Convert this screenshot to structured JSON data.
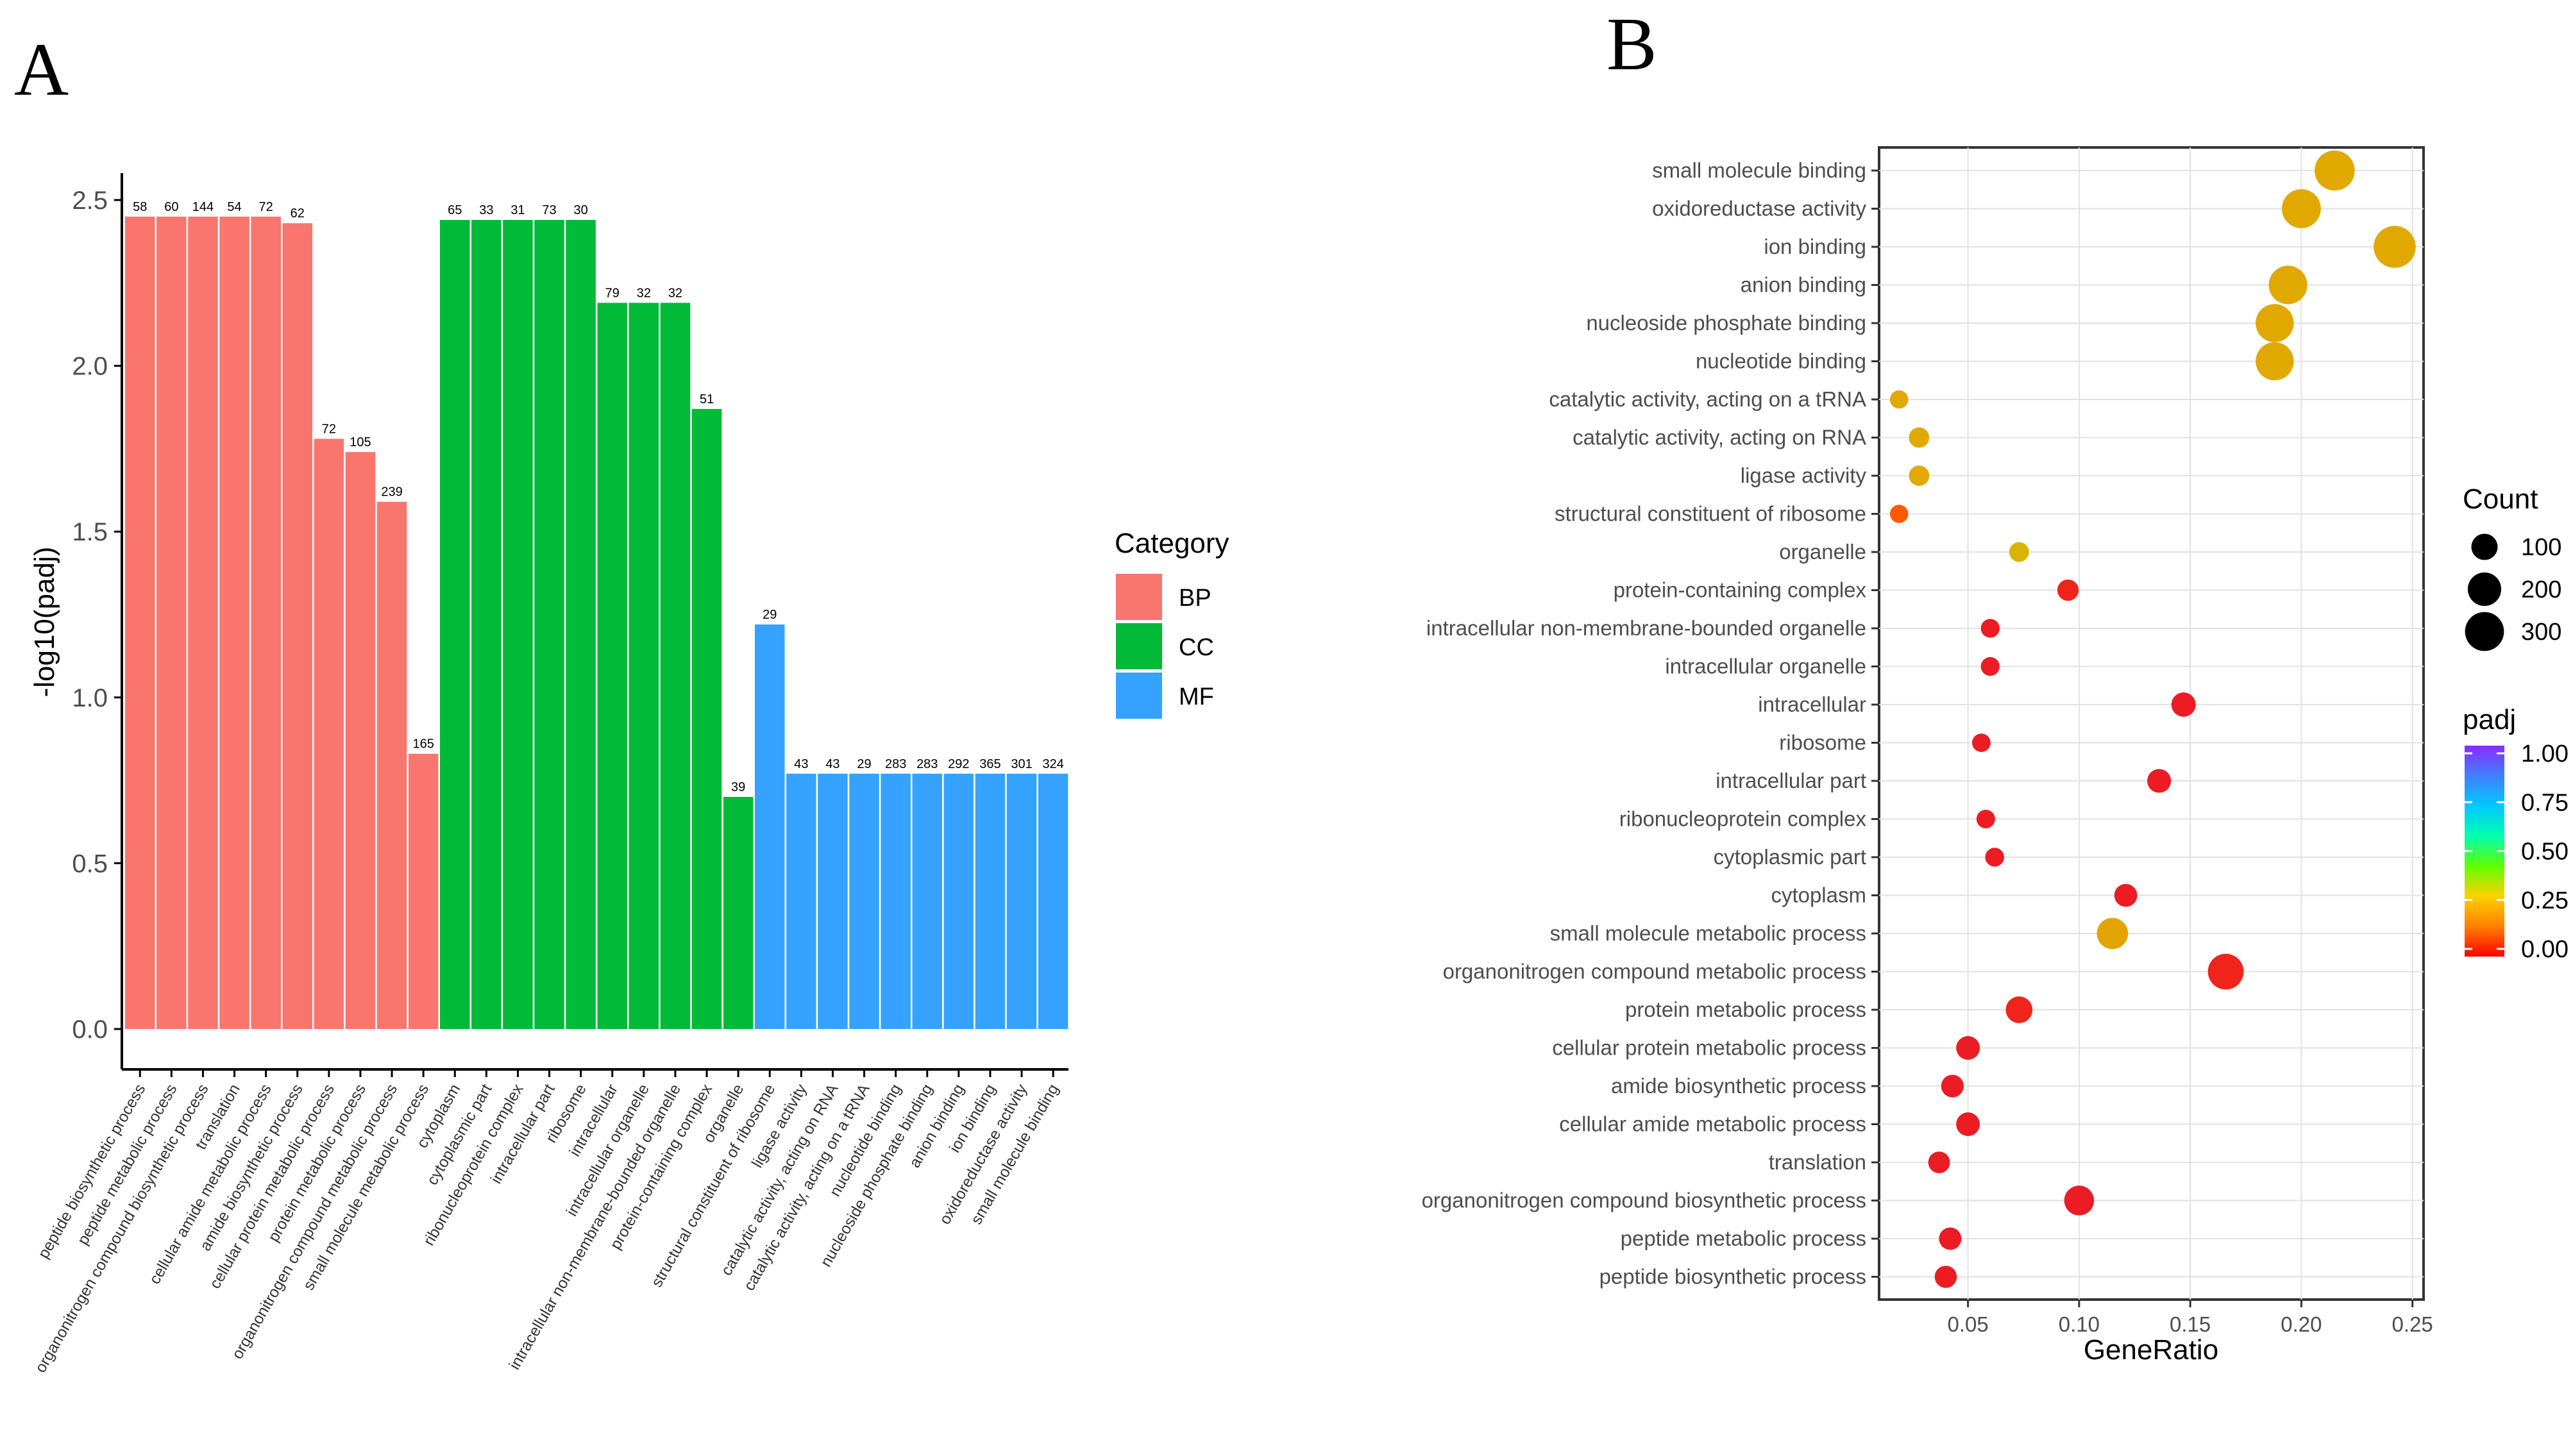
{
  "panels": {
    "left_letter": "A",
    "right_letter": "B"
  },
  "chart_data": [
    {
      "type": "bar",
      "panel": "A",
      "ylabel": "-log10(padj)",
      "ylim": [
        0,
        2.5
      ],
      "yticks": [
        "0.0",
        "0.5",
        "1.0",
        "1.5",
        "2.0",
        "2.5"
      ],
      "legend": {
        "title": "Category",
        "items": [
          {
            "label": "BP",
            "color": "#F8766D"
          },
          {
            "label": "CC",
            "color": "#00BA38"
          },
          {
            "label": "MF",
            "color": "#35A2FF"
          }
        ]
      },
      "bars": [
        {
          "category": "peptide biosynthetic process",
          "group": "BP",
          "value": 2.45,
          "label": "58"
        },
        {
          "category": "peptide metabolic process",
          "group": "BP",
          "value": 2.45,
          "label": "60"
        },
        {
          "category": "organonitrogen compound biosynthetic process",
          "group": "BP",
          "value": 2.45,
          "label": "144"
        },
        {
          "category": "translation",
          "group": "BP",
          "value": 2.45,
          "label": "54"
        },
        {
          "category": "cellular amide metabolic process",
          "group": "BP",
          "value": 2.45,
          "label": "72"
        },
        {
          "category": "amide biosynthetic process",
          "group": "BP",
          "value": 2.43,
          "label": "62"
        },
        {
          "category": "cellular protein metabolic process",
          "group": "BP",
          "value": 1.78,
          "label": "72"
        },
        {
          "category": "protein metabolic process",
          "group": "BP",
          "value": 1.74,
          "label": "105"
        },
        {
          "category": "organonitrogen compound metabolic process",
          "group": "BP",
          "value": 1.59,
          "label": "239"
        },
        {
          "category": "small molecule metabolic process",
          "group": "BP",
          "value": 0.83,
          "label": "165"
        },
        {
          "category": "cytoplasm",
          "group": "CC",
          "value": 2.44,
          "label": "65"
        },
        {
          "category": "cytoplasmic part",
          "group": "CC",
          "value": 2.44,
          "label": "33"
        },
        {
          "category": "ribonucleoprotein complex",
          "group": "CC",
          "value": 2.44,
          "label": "31"
        },
        {
          "category": "intracellular part",
          "group": "CC",
          "value": 2.44,
          "label": "73"
        },
        {
          "category": "ribosome",
          "group": "CC",
          "value": 2.44,
          "label": "30"
        },
        {
          "category": "intracellular",
          "group": "CC",
          "value": 2.19,
          "label": "79"
        },
        {
          "category": "intracellular organelle",
          "group": "CC",
          "value": 2.19,
          "label": "32"
        },
        {
          "category": "intracellular non-membrane-bounded organelle",
          "group": "CC",
          "value": 2.19,
          "label": "32"
        },
        {
          "category": "protein-containing complex",
          "group": "CC",
          "value": 1.87,
          "label": "51"
        },
        {
          "category": "organelle",
          "group": "CC",
          "value": 0.7,
          "label": "39"
        },
        {
          "category": "structural constituent of ribosome",
          "group": "MF",
          "value": 1.22,
          "label": "29"
        },
        {
          "category": "ligase activity",
          "group": "MF",
          "value": 0.77,
          "label": "43"
        },
        {
          "category": "catalytic activity, acting on RNA",
          "group": "MF",
          "value": 0.77,
          "label": "43"
        },
        {
          "category": "catalytic activity, acting on a tRNA",
          "group": "MF",
          "value": 0.77,
          "label": "29"
        },
        {
          "category": "nucleotide binding",
          "group": "MF",
          "value": 0.77,
          "label": "283"
        },
        {
          "category": "nucleoside phosphate binding",
          "group": "MF",
          "value": 0.77,
          "label": "283"
        },
        {
          "category": "anion binding",
          "group": "MF",
          "value": 0.77,
          "label": "292"
        },
        {
          "category": "ion binding",
          "group": "MF",
          "value": 0.77,
          "label": "365"
        },
        {
          "category": "oxidoreductase activity",
          "group": "MF",
          "value": 0.77,
          "label": "301"
        },
        {
          "category": "small molecule binding",
          "group": "MF",
          "value": 0.77,
          "label": "324"
        }
      ]
    },
    {
      "type": "scatter",
      "panel": "B",
      "xlabel": "GeneRatio",
      "xlim": [
        0.01,
        0.255
      ],
      "xticks": [
        0.05,
        0.1,
        0.15,
        0.2,
        0.25
      ],
      "xtick_labels": [
        "0.05",
        "0.10",
        "0.15",
        "0.20",
        "0.25"
      ],
      "size_legend": {
        "title": "Count",
        "values": [
          100,
          200,
          300
        ]
      },
      "color_legend": {
        "title": "padj",
        "ticks": [
          "1.00",
          "0.75",
          "0.50",
          "0.25",
          "0.00"
        ],
        "colors": [
          "#FF0000",
          "#FF8000",
          "#FFD000",
          "#60FF00",
          "#00FFB0",
          "#00C8FF",
          "#4080FF",
          "#8A2BFF"
        ]
      },
      "points": [
        {
          "term": "small molecule binding",
          "x": 0.215,
          "count": 324,
          "color": "#E1A900"
        },
        {
          "term": "oxidoreductase activity",
          "x": 0.2,
          "count": 301,
          "color": "#E1A900"
        },
        {
          "term": "ion binding",
          "x": 0.242,
          "count": 365,
          "color": "#E1A900"
        },
        {
          "term": "anion binding",
          "x": 0.194,
          "count": 292,
          "color": "#E1A900"
        },
        {
          "term": "nucleoside phosphate binding",
          "x": 0.188,
          "count": 283,
          "color": "#E1A900"
        },
        {
          "term": "nucleotide binding",
          "x": 0.188,
          "count": 283,
          "color": "#E1A900"
        },
        {
          "term": "catalytic activity, acting on a tRNA",
          "x": 0.019,
          "count": 29,
          "color": "#E1A900"
        },
        {
          "term": "catalytic activity, acting on RNA",
          "x": 0.028,
          "count": 43,
          "color": "#E1A900"
        },
        {
          "term": "ligase activity",
          "x": 0.028,
          "count": 43,
          "color": "#E1A900"
        },
        {
          "term": "structural constituent of ribosome",
          "x": 0.019,
          "count": 29,
          "color": "#FF5A00"
        },
        {
          "term": "organelle",
          "x": 0.073,
          "count": 39,
          "color": "#D9B400"
        },
        {
          "term": "protein-containing complex",
          "x": 0.095,
          "count": 51,
          "color": "#F0241A"
        },
        {
          "term": "intracellular non-membrane-bounded organelle",
          "x": 0.06,
          "count": 32,
          "color": "#EC1C24"
        },
        {
          "term": "intracellular organelle",
          "x": 0.06,
          "count": 32,
          "color": "#EC1C24"
        },
        {
          "term": "intracellular",
          "x": 0.147,
          "count": 79,
          "color": "#EC1C24"
        },
        {
          "term": "ribosome",
          "x": 0.056,
          "count": 30,
          "color": "#EC1C24"
        },
        {
          "term": "intracellular part",
          "x": 0.136,
          "count": 73,
          "color": "#EC1C24"
        },
        {
          "term": "ribonucleoprotein complex",
          "x": 0.058,
          "count": 31,
          "color": "#EC1C24"
        },
        {
          "term": "cytoplasmic part",
          "x": 0.062,
          "count": 33,
          "color": "#EC1C24"
        },
        {
          "term": "cytoplasm",
          "x": 0.121,
          "count": 65,
          "color": "#EC1C24"
        },
        {
          "term": "small molecule metabolic process",
          "x": 0.115,
          "count": 165,
          "color": "#E4A400"
        },
        {
          "term": "organonitrogen compound metabolic process",
          "x": 0.166,
          "count": 239,
          "color": "#F0241A"
        },
        {
          "term": "protein metabolic process",
          "x": 0.073,
          "count": 105,
          "color": "#F0241A"
        },
        {
          "term": "cellular protein metabolic process",
          "x": 0.05,
          "count": 72,
          "color": "#EC1C24"
        },
        {
          "term": "amide biosynthetic process",
          "x": 0.043,
          "count": 62,
          "color": "#EC1C24"
        },
        {
          "term": "cellular amide metabolic process",
          "x": 0.05,
          "count": 72,
          "color": "#EC1C24"
        },
        {
          "term": "translation",
          "x": 0.037,
          "count": 54,
          "color": "#EC1C24"
        },
        {
          "term": "organonitrogen compound biosynthetic process",
          "x": 0.1,
          "count": 144,
          "color": "#EC1C24"
        },
        {
          "term": "peptide metabolic process",
          "x": 0.042,
          "count": 60,
          "color": "#EC1C24"
        },
        {
          "term": "peptide biosynthetic process",
          "x": 0.04,
          "count": 58,
          "color": "#EC1C24"
        }
      ]
    }
  ]
}
